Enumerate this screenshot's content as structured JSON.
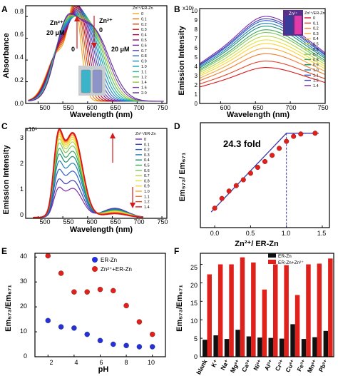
{
  "panels": {
    "A": {
      "letter": "A",
      "ylabel": "Absorbance",
      "xlabel": "Wavelength (nm)",
      "xticks": [
        "500",
        "550",
        "600",
        "650",
        "700",
        "750"
      ],
      "yticks": [
        "0.0",
        "0.2",
        "0.4",
        "0.6",
        "0.8"
      ],
      "legend_title": "Zn²⁺/ER-Zn",
      "legend": [
        "0",
        "0.1",
        "0.2",
        "0.3",
        "0.4",
        "0.5",
        "0.6",
        "0.7",
        "0.8",
        "0.9",
        "1.0",
        "1.1",
        "1.2",
        "1.4",
        "1.6",
        "2.0"
      ],
      "ann_left_1": "Zn²⁺",
      "ann_left_2": "20 μM",
      "ann_left_3": "0",
      "ann_right_1": "Zn²⁺",
      "ann_right_2": "0",
      "ann_right_3": "20 μM"
    },
    "B": {
      "letter": "B",
      "ylabel": "Emission Intensity",
      "xlabel": "Wavelength (nm)",
      "multiplier": "x10⁵",
      "xticks": [
        "600",
        "650",
        "700",
        "750"
      ],
      "yticks": [
        "0",
        "1",
        "2",
        "3",
        "4",
        "5",
        "6",
        "7",
        "8",
        "9",
        "10"
      ],
      "legend_title": "Zn²⁺/ER-Zn",
      "legend": [
        "0",
        "0.1",
        "0.2",
        "0.3",
        "0.4",
        "0.5",
        "0.6",
        "0.7",
        "0.8",
        "0.9",
        "1.0",
        "1.1",
        "1.2",
        "1.4"
      ],
      "inset_label": "Zn²⁺"
    },
    "C": {
      "letter": "C",
      "ylabel": "Emission Intensity",
      "xlabel": "Wavelength (nm)",
      "multiplier": "x10⁵",
      "xticks": [
        "500",
        "550",
        "600",
        "650",
        "700",
        "750"
      ],
      "yticks": [
        "0",
        "1",
        "2",
        "3"
      ],
      "legend_title": "Zn²⁺/ER-Zn",
      "legend": [
        "0",
        "0.1",
        "0.2",
        "0.3",
        "0.4",
        "0.5",
        "0.6",
        "0.7",
        "0.8",
        "0.9",
        "1.0",
        "1.1",
        "1.2",
        "1.4"
      ]
    },
    "D": {
      "letter": "D",
      "ylabel": "Em₅₇₃/ Em₆₇₁",
      "xlabel": "Zn²⁺/ ER-Zn",
      "xticks": [
        "0.0",
        "0.5",
        "1.0",
        "1.5"
      ],
      "annotation": "24.3 fold"
    },
    "E": {
      "letter": "E",
      "ylabel": "Em₅₇₃/Em₆₇₁",
      "xlabel": "pH",
      "xticks": [
        "2",
        "4",
        "6",
        "8",
        "10"
      ],
      "yticks": [
        "0",
        "10",
        "20",
        "30",
        "40"
      ]
    },
    "F": {
      "letter": "F",
      "ylabel": "Em₅₇₃/Em₆₇₁",
      "yticks": [
        "0",
        "5",
        "10",
        "15",
        "20",
        "25"
      ]
    }
  },
  "chart_data": [
    {
      "panel": "A",
      "type": "line",
      "xlim": [
        475,
        760
      ],
      "ylim": [
        0,
        0.9
      ],
      "curve_count": 16,
      "start_peaks": {
        "peak1_x": 540,
        "peak1_y": 0.44,
        "peak2_x": 573,
        "peak2_y": 0.88
      },
      "end_peaks": {
        "peak1_x": 555,
        "peak1_y": 0.55,
        "peak2_x": 608,
        "peak2_y": 0.67
      },
      "colors": [
        "#f5a623",
        "#e57316",
        "#d94a12",
        "#c21a13",
        "#a70a3a",
        "#8c0f6b",
        "#6e2a96",
        "#4f47b8",
        "#2f66cc",
        "#1a86c9",
        "#11a3b0",
        "#2fb58a",
        "#5fbf59",
        "#9ac63a",
        "#7d3fa8",
        "#5b2a99"
      ]
    },
    {
      "panel": "B",
      "type": "line",
      "xlim": [
        570,
        750
      ],
      "ylim": [
        0,
        10
      ],
      "peak_x": 665,
      "peak_values": [
        3.9,
        4.6,
        5.4,
        6.0,
        6.5,
        6.9,
        7.3,
        7.7,
        8.0,
        8.4,
        8.7,
        9.0,
        9.2,
        9.45
      ],
      "colors": [
        "#d7191c",
        "#e5462a",
        "#f07a2e",
        "#f8a835",
        "#fdd23a",
        "#e5e33a",
        "#b8d64a",
        "#7fc65c",
        "#3aa955",
        "#1a9070",
        "#1f7fb3",
        "#2c5fc7",
        "#3f3fb5",
        "#7d2ea8"
      ]
    },
    {
      "panel": "C",
      "type": "line",
      "xlim": [
        475,
        760
      ],
      "ylim": [
        0,
        3.4
      ],
      "peak_x": 570,
      "shoulder_x": 540,
      "peak_values": [
        1.1,
        1.4,
        1.75,
        2.05,
        2.3,
        2.5,
        2.7,
        2.85,
        2.95,
        3.03,
        3.1,
        3.15,
        3.18,
        3.2
      ],
      "colors": [
        "#7d2ea8",
        "#3f3fb5",
        "#2c5fc7",
        "#1f7fb3",
        "#1a9070",
        "#3aa955",
        "#7fc65c",
        "#b8d64a",
        "#e5e33a",
        "#fdd23a",
        "#f8a835",
        "#f07a2e",
        "#e5462a",
        "#d7191c"
      ]
    },
    {
      "panel": "D",
      "type": "scatter",
      "xlim": [
        -0.1,
        1.5
      ],
      "ylim": [
        3,
        27
      ],
      "x": [
        0,
        0.1,
        0.2,
        0.3,
        0.4,
        0.5,
        0.6,
        0.7,
        0.8,
        0.9,
        1.0,
        1.1,
        1.2,
        1.4
      ],
      "y": [
        5.0,
        7.5,
        9.4,
        10.8,
        12.3,
        14.0,
        15.5,
        17.0,
        18.6,
        20.4,
        22.2,
        23.5,
        24.1,
        24.3
      ],
      "fit_line": {
        "x": [
          -0.05,
          1.0,
          1.45
        ],
        "y": [
          4.0,
          24.3,
          24.3
        ]
      },
      "marker_x": 1.0
    },
    {
      "panel": "E",
      "type": "scatter",
      "xlim": [
        1.3,
        10.7
      ],
      "ylim": [
        0,
        44
      ],
      "series": [
        {
          "name": "ER-Zn",
          "color": "#2531d8",
          "x": [
            2,
            3,
            4,
            5,
            6,
            7,
            8,
            9,
            10
          ],
          "y": [
            14.5,
            12,
            11.5,
            9,
            6.5,
            5,
            4.5,
            4,
            4
          ]
        },
        {
          "name": "Zn²⁺+ER-Zn",
          "color": "#e0201a",
          "x": [
            2,
            3,
            4,
            5,
            6,
            7,
            8,
            9,
            10
          ],
          "y": [
            40.5,
            33.5,
            26,
            26,
            27,
            26.5,
            20.5,
            14,
            9
          ]
        }
      ]
    },
    {
      "panel": "F",
      "type": "bar",
      "ylim": [
        0,
        28
      ],
      "categories": [
        "blank",
        "K⁺",
        "Na⁺",
        "Mg²⁺",
        "Ca²⁺",
        "Ni²⁺",
        "Al³⁺",
        "Cr³⁺",
        "Cu²⁺",
        "Fe³⁺",
        "Mn²⁺",
        "Pb²⁺"
      ],
      "series": [
        {
          "name": "ER-Zn",
          "color": "#111111",
          "values": [
            4.6,
            5.8,
            4.8,
            7.3,
            5.5,
            5.2,
            5.1,
            4.9,
            8.8,
            4.8,
            5.3,
            7.0
          ]
        },
        {
          "name": "ER-Zn+Zn²⁺",
          "color": "#e0201a",
          "values": [
            22.3,
            25.0,
            25.0,
            26.9,
            25.5,
            18.2,
            25.0,
            24.8,
            16.7,
            25.0,
            25.2,
            26.6
          ]
        }
      ]
    }
  ]
}
